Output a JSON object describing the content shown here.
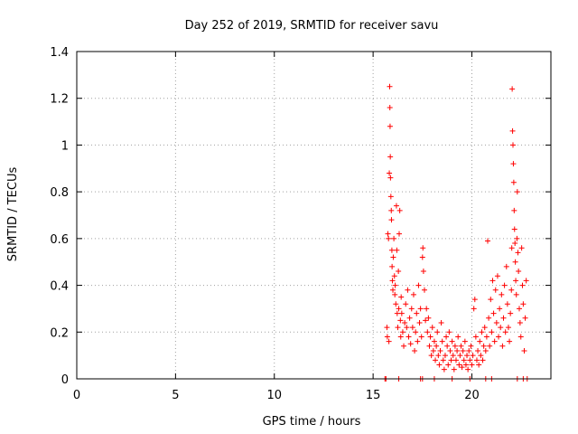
{
  "chart_data": {
    "type": "scatter",
    "title": "Day 252 of 2019, SRMTID for receiver savu",
    "xlabel": "GPS time / hours",
    "ylabel": "SRMTID / TECUs",
    "xlim": [
      0,
      24
    ],
    "ylim": [
      0,
      1.4
    ],
    "xticks": [
      0,
      5,
      10,
      15,
      20
    ],
    "xtick_labels": [
      "0",
      "5",
      "10",
      "15",
      "20"
    ],
    "yticks": [
      0,
      0.2,
      0.4,
      0.6,
      0.8,
      1.0,
      1.2,
      1.4
    ],
    "ytick_labels": [
      "0",
      "0.2",
      "0.4",
      "0.6",
      "0.8",
      "1",
      "1.2",
      "1.4"
    ],
    "grid": true,
    "marker": "plus",
    "color": "#ff0000",
    "series": [
      {
        "name": "SRMTID",
        "points": [
          [
            15.7,
            0.22
          ],
          [
            15.72,
            0.18
          ],
          [
            15.75,
            0.62
          ],
          [
            15.78,
            0.6
          ],
          [
            15.8,
            0.16
          ],
          [
            15.82,
            0.88
          ],
          [
            15.84,
            1.25
          ],
          [
            15.85,
            1.16
          ],
          [
            15.86,
            1.08
          ],
          [
            15.87,
            0.95
          ],
          [
            15.88,
            0.86
          ],
          [
            15.9,
            0.78
          ],
          [
            15.92,
            0.72
          ],
          [
            15.93,
            0.68
          ],
          [
            15.95,
            0.55
          ],
          [
            15.96,
            0.48
          ],
          [
            15.98,
            0.42
          ],
          [
            16.0,
            0.38
          ],
          [
            16.02,
            0.52
          ],
          [
            16.05,
            0.6
          ],
          [
            16.08,
            0.44
          ],
          [
            16.1,
            0.36
          ],
          [
            16.12,
            0.4
          ],
          [
            16.15,
            0.32
          ],
          [
            16.18,
            0.74
          ],
          [
            16.2,
            0.55
          ],
          [
            16.22,
            0.28
          ],
          [
            16.25,
            0.22
          ],
          [
            16.28,
            0.46
          ],
          [
            16.3,
            0.3
          ],
          [
            16.32,
            0.62
          ],
          [
            16.35,
            0.72
          ],
          [
            16.38,
            0.25
          ],
          [
            16.4,
            0.18
          ],
          [
            16.42,
            0.35
          ],
          [
            16.45,
            0.28
          ],
          [
            16.5,
            0.2
          ],
          [
            16.55,
            0.14
          ],
          [
            16.6,
            0.24
          ],
          [
            16.65,
            0.32
          ],
          [
            16.7,
            0.22
          ],
          [
            16.75,
            0.38
          ],
          [
            16.8,
            0.18
          ],
          [
            16.85,
            0.26
          ],
          [
            16.9,
            0.15
          ],
          [
            16.95,
            0.3
          ],
          [
            17.0,
            0.22
          ],
          [
            17.05,
            0.36
          ],
          [
            17.1,
            0.12
          ],
          [
            17.15,
            0.2
          ],
          [
            17.2,
            0.28
          ],
          [
            17.25,
            0.16
          ],
          [
            17.3,
            0.4
          ],
          [
            17.35,
            0.24
          ],
          [
            17.4,
            0.3
          ],
          [
            17.45,
            0.18
          ],
          [
            17.5,
            0.52
          ],
          [
            17.52,
            0.56
          ],
          [
            17.55,
            0.46
          ],
          [
            17.6,
            0.38
          ],
          [
            17.65,
            0.25
          ],
          [
            17.7,
            0.3
          ],
          [
            17.75,
            0.2
          ],
          [
            17.8,
            0.26
          ],
          [
            17.85,
            0.14
          ],
          [
            17.9,
            0.18
          ],
          [
            17.95,
            0.1
          ],
          [
            18.0,
            0.22
          ],
          [
            18.05,
            0.12
          ],
          [
            18.1,
            0.16
          ],
          [
            18.15,
            0.08
          ],
          [
            18.2,
            0.14
          ],
          [
            18.25,
            0.2
          ],
          [
            18.3,
            0.1
          ],
          [
            18.35,
            0.06
          ],
          [
            18.4,
            0.12
          ],
          [
            18.45,
            0.24
          ],
          [
            18.5,
            0.16
          ],
          [
            18.55,
            0.08
          ],
          [
            18.6,
            0.04
          ],
          [
            18.65,
            0.1
          ],
          [
            18.7,
            0.18
          ],
          [
            18.75,
            0.14
          ],
          [
            18.8,
            0.06
          ],
          [
            18.85,
            0.2
          ],
          [
            18.9,
            0.12
          ],
          [
            18.95,
            0.08
          ],
          [
            19.0,
            0.16
          ],
          [
            19.05,
            0.1
          ],
          [
            19.1,
            0.04
          ],
          [
            19.15,
            0.14
          ],
          [
            19.2,
            0.08
          ],
          [
            19.25,
            0.12
          ],
          [
            19.3,
            0.18
          ],
          [
            19.35,
            0.06
          ],
          [
            19.4,
            0.1
          ],
          [
            19.45,
            0.14
          ],
          [
            19.5,
            0.05
          ],
          [
            19.55,
            0.12
          ],
          [
            19.6,
            0.08
          ],
          [
            19.65,
            0.16
          ],
          [
            19.7,
            0.06
          ],
          [
            19.75,
            0.1
          ],
          [
            19.8,
            0.04
          ],
          [
            19.85,
            0.12
          ],
          [
            19.9,
            0.08
          ],
          [
            19.95,
            0.14
          ],
          [
            20.0,
            0.06
          ],
          [
            20.05,
            0.1
          ],
          [
            20.1,
            0.3
          ],
          [
            20.15,
            0.34
          ],
          [
            20.2,
            0.18
          ],
          [
            20.25,
            0.08
          ],
          [
            20.3,
            0.12
          ],
          [
            20.35,
            0.06
          ],
          [
            20.4,
            0.16
          ],
          [
            20.45,
            0.1
          ],
          [
            20.5,
            0.2
          ],
          [
            20.55,
            0.08
          ],
          [
            20.6,
            0.14
          ],
          [
            20.65,
            0.22
          ],
          [
            20.7,
            0.12
          ],
          [
            20.75,
            0.18
          ],
          [
            20.8,
            0.59
          ],
          [
            20.85,
            0.26
          ],
          [
            20.9,
            0.14
          ],
          [
            20.95,
            0.34
          ],
          [
            21.0,
            0.2
          ],
          [
            21.05,
            0.42
          ],
          [
            21.1,
            0.28
          ],
          [
            21.15,
            0.16
          ],
          [
            21.2,
            0.38
          ],
          [
            21.25,
            0.24
          ],
          [
            21.3,
            0.44
          ],
          [
            21.35,
            0.18
          ],
          [
            21.4,
            0.3
          ],
          [
            21.45,
            0.22
          ],
          [
            21.5,
            0.36
          ],
          [
            21.55,
            0.14
          ],
          [
            21.6,
            0.26
          ],
          [
            21.65,
            0.4
          ],
          [
            21.7,
            0.2
          ],
          [
            21.75,
            0.48
          ],
          [
            21.8,
            0.32
          ],
          [
            21.85,
            0.22
          ],
          [
            21.9,
            0.16
          ],
          [
            21.95,
            0.28
          ],
          [
            22.0,
            0.38
          ],
          [
            22.02,
            0.56
          ],
          [
            22.04,
            1.24
          ],
          [
            22.06,
            1.06
          ],
          [
            22.08,
            1.0
          ],
          [
            22.1,
            0.92
          ],
          [
            22.12,
            0.84
          ],
          [
            22.14,
            0.72
          ],
          [
            22.16,
            0.64
          ],
          [
            22.18,
            0.58
          ],
          [
            22.2,
            0.5
          ],
          [
            22.22,
            0.42
          ],
          [
            22.25,
            0.36
          ],
          [
            22.28,
            0.6
          ],
          [
            22.3,
            0.8
          ],
          [
            22.33,
            0.54
          ],
          [
            22.36,
            0.46
          ],
          [
            22.4,
            0.3
          ],
          [
            22.44,
            0.24
          ],
          [
            22.48,
            0.18
          ],
          [
            22.52,
            0.56
          ],
          [
            22.56,
            0.4
          ],
          [
            22.6,
            0.32
          ],
          [
            22.65,
            0.12
          ],
          [
            22.7,
            0.26
          ],
          [
            22.75,
            0.42
          ],
          [
            15.6,
            0.0
          ],
          [
            15.65,
            0.0
          ],
          [
            16.3,
            0.0
          ],
          [
            17.4,
            0.0
          ],
          [
            17.5,
            0.0
          ],
          [
            18.1,
            0.0
          ],
          [
            19.0,
            0.0
          ],
          [
            19.9,
            0.0
          ],
          [
            20.7,
            0.0
          ],
          [
            21.0,
            0.0
          ],
          [
            22.3,
            0.0
          ],
          [
            22.6,
            0.0
          ],
          [
            22.8,
            0.0
          ]
        ]
      }
    ]
  }
}
